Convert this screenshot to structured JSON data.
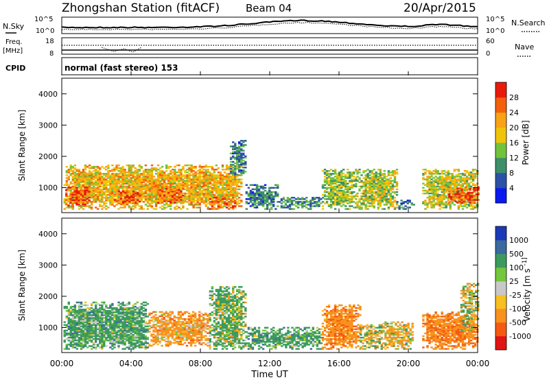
{
  "header": {
    "station": "Zhongshan Station (fitACF)",
    "beam": "Beam 04",
    "date": "20/Apr/2015"
  },
  "top_panels": {
    "nsky_label": "N.Sky",
    "nsky_ticks": [
      "10^5",
      "10^0"
    ],
    "nsearch_label": "N.Search",
    "nsearch_ticks": [
      "10^5",
      "10^0"
    ],
    "freq_label": "Freq.",
    "freq_unit": "[MHz]",
    "freq_ticks": [
      "18",
      "8"
    ],
    "nave_label": "Nave",
    "nave_ticks": [
      "60",
      "0"
    ],
    "cpid_label": "CPID",
    "cpid_value": "normal (fast stereo) 153"
  },
  "x_axis": {
    "ticks": [
      "00:00",
      "04:00",
      "08:00",
      "12:00",
      "16:00",
      "20:00",
      "00:00"
    ],
    "label": "Time UT"
  },
  "colors": {
    "power": [
      "#0a1aee",
      "#2b52a6",
      "#3d8f6a",
      "#72c23e",
      "#f0c40a",
      "#f8a214",
      "#f4600e",
      "#e81b0b"
    ],
    "velocity": [
      "#e01414",
      "#f55a12",
      "#f7921e",
      "#f7c020",
      "#c8c8c8",
      "#74c63c",
      "#3c9a5e",
      "#3a6a9e",
      "#1a3ab8"
    ]
  },
  "chart_data": [
    {
      "type": "heatmap",
      "name": "power",
      "ylabel": "Slant Range [km]",
      "yticks": [
        "4000",
        "3000",
        "2000",
        "1000"
      ],
      "ylim": [
        200,
        4500
      ],
      "xlim_hours": [
        0,
        24
      ],
      "colorbar_label": "Power [dB]",
      "colorbar_ticks": [
        "28",
        "24",
        "20",
        "16",
        "12",
        "8",
        "4"
      ],
      "colorbar_range": [
        0,
        32
      ],
      "regions": [
        {
          "t": [
            0.1,
            10.3
          ],
          "r": [
            300,
            1700
          ],
          "level": 20
        },
        {
          "t": [
            0.2,
            1.6
          ],
          "r": [
            400,
            1000
          ],
          "level": 28
        },
        {
          "t": [
            3.0,
            4.5
          ],
          "r": [
            450,
            900
          ],
          "level": 27
        },
        {
          "t": [
            5.5,
            7.0
          ],
          "r": [
            500,
            1000
          ],
          "level": 26
        },
        {
          "t": [
            8.5,
            10.0
          ],
          "r": [
            300,
            700
          ],
          "level": 27
        },
        {
          "t": [
            9.7,
            10.6
          ],
          "r": [
            1400,
            2500
          ],
          "level": 9
        },
        {
          "t": [
            10.6,
            12.5
          ],
          "r": [
            300,
            1100
          ],
          "level": 9
        },
        {
          "t": [
            12.5,
            15.0
          ],
          "r": [
            300,
            700
          ],
          "level": 10
        },
        {
          "t": [
            15.0,
            17.0
          ],
          "r": [
            300,
            1600
          ],
          "level": 14
        },
        {
          "t": [
            17.0,
            19.3
          ],
          "r": [
            300,
            1600
          ],
          "level": 16
        },
        {
          "t": [
            19.3,
            20.3
          ],
          "r": [
            300,
            600
          ],
          "level": 7
        },
        {
          "t": [
            20.8,
            24.0
          ],
          "r": [
            300,
            1600
          ],
          "level": 17
        },
        {
          "t": [
            22.3,
            24.0
          ],
          "r": [
            500,
            1000
          ],
          "level": 27
        }
      ]
    },
    {
      "type": "heatmap",
      "name": "velocity",
      "ylabel": "Slant Range [km]",
      "yticks": [
        "4000",
        "3000",
        "2000",
        "1000"
      ],
      "ylim": [
        200,
        4500
      ],
      "xlim_hours": [
        0,
        24
      ],
      "colorbar_label": "Velocity [m s^-1]",
      "colorbar_ticks": [
        "1000",
        "500",
        "100",
        "25",
        "-25",
        "-100",
        "-500",
        "-1000"
      ],
      "regions": [
        {
          "t": [
            0.1,
            5.0
          ],
          "r": [
            300,
            1800
          ],
          "v": 250
        },
        {
          "t": [
            5.0,
            8.5
          ],
          "r": [
            400,
            1500
          ],
          "v": -250
        },
        {
          "t": [
            8.5,
            10.6
          ],
          "r": [
            300,
            2300
          ],
          "v": 150
        },
        {
          "t": [
            10.6,
            15.0
          ],
          "r": [
            300,
            1000
          ],
          "v": 250
        },
        {
          "t": [
            15.0,
            17.2
          ],
          "r": [
            300,
            1700
          ],
          "v": -350
        },
        {
          "t": [
            17.2,
            18.5
          ],
          "r": [
            300,
            1100
          ],
          "v": 0
        },
        {
          "t": [
            18.5,
            20.3
          ],
          "r": [
            300,
            1200
          ],
          "v": -150
        },
        {
          "t": [
            20.8,
            24.0
          ],
          "r": [
            300,
            1500
          ],
          "v": -400
        },
        {
          "t": [
            23.0,
            24.0
          ],
          "r": [
            900,
            2400
          ],
          "v": 0
        }
      ]
    }
  ]
}
